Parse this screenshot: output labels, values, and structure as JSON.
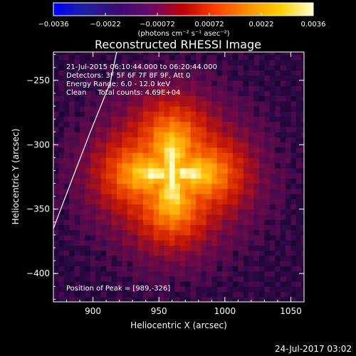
{
  "chart_data": {
    "type": "heatmap",
    "title": "Reconstructed RHESSI Image",
    "xlabel": "Heliocentric X (arcsec)",
    "ylabel": "Heliocentric Y (arcsec)",
    "xlim": [
      870,
      1060
    ],
    "ylim": [
      -422,
      -228
    ],
    "x_ticks": [
      900,
      950,
      1000,
      1050
    ],
    "y_ticks": [
      -400,
      -350,
      -300,
      -250
    ],
    "x_tick_labels": [
      "900",
      "950",
      "1000",
      "1050"
    ],
    "y_tick_labels": [
      "−400",
      "−350",
      "−300",
      "−250"
    ],
    "colorbar": {
      "range": [
        -0.0036,
        0.0036
      ],
      "tick_labels": [
        "−0.0036",
        "−0.0022",
        "−0.00072",
        "0.00072",
        "0.0022",
        "0.0036"
      ],
      "units_label": "(photons cm⁻² s⁻¹ asec⁻²)",
      "colormap": [
        "#0000ff",
        "#2020a0",
        "#3a0a70",
        "#6a0a6a",
        "#c00000",
        "#ff4000",
        "#ff9000",
        "#ffd000",
        "#ffffd0"
      ]
    },
    "annotations": [
      "21-Jul-2015 06:10:44.000 to 06:20:44.000",
      "Detectors: 3F 5F 6F 7F 8F 9F, Att 0",
      "Energy Range: 6.0 - 12.0 keV",
      "Clean     Total counts: 4.69E+04"
    ],
    "peak_label": "Position of Peak = [989,-326]",
    "peak": {
      "x": 989,
      "y": -326
    },
    "source": {
      "center_x": 960,
      "center_y": -322,
      "sigma_x": 36,
      "sigma_y": 36
    },
    "limb_curve": [
      [
        870,
        -365
      ],
      [
        883,
        -330
      ],
      [
        898,
        -290
      ],
      [
        913,
        -252
      ],
      [
        918,
        -228
      ]
    ],
    "footer": "24-Jul-2017 03:02"
  },
  "colors": {
    "background": "#000000",
    "text": "#ffffff",
    "limb": "#ffffff"
  }
}
